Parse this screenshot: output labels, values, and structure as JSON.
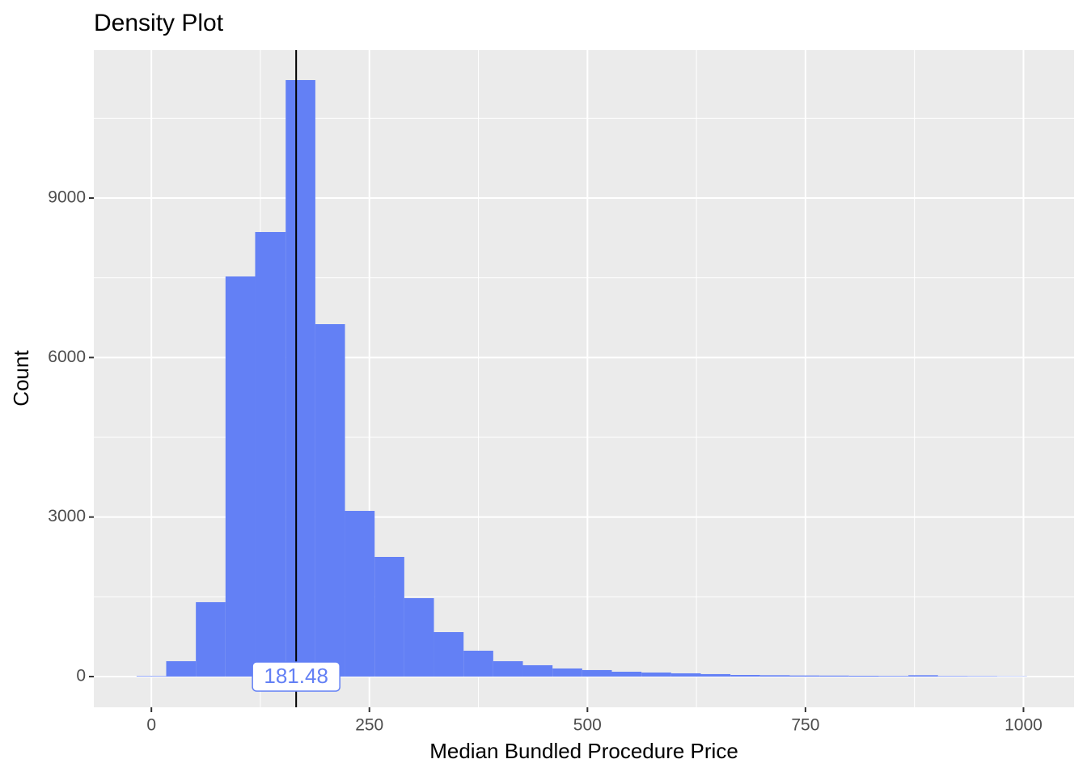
{
  "chart_data": {
    "type": "histogram",
    "title": "Density Plot",
    "x_label": "Median Bundled Procedure Price",
    "y_label": "Count",
    "bins": [
      -17,
      17,
      51,
      85,
      119,
      154,
      188,
      222,
      256,
      290,
      324,
      358,
      392,
      426,
      460,
      494,
      528,
      562,
      596,
      630,
      664,
      698,
      732,
      766,
      800,
      834,
      868,
      902,
      936,
      970,
      1004
    ],
    "counts": [
      10,
      289,
      1399,
      7525,
      8361,
      11219,
      6628,
      3116,
      2250,
      1475,
      836,
      486,
      289,
      213,
      152,
      122,
      91,
      76,
      61,
      46,
      30,
      25,
      20,
      18,
      15,
      12,
      25,
      10,
      8,
      5
    ],
    "color": "#6380f5",
    "xlim": [
      -66,
      1058
    ],
    "xticks": [
      0,
      250,
      500,
      750,
      1000
    ],
    "xminor": [
      125,
      375,
      625,
      875
    ],
    "ylim": [
      -578,
      11782
    ],
    "yticks": [
      0,
      3000,
      6000,
      9000
    ],
    "yminor": [
      1500,
      4500,
      7500,
      10500
    ],
    "vline": 166,
    "annotation": "181.48",
    "grid": true
  }
}
